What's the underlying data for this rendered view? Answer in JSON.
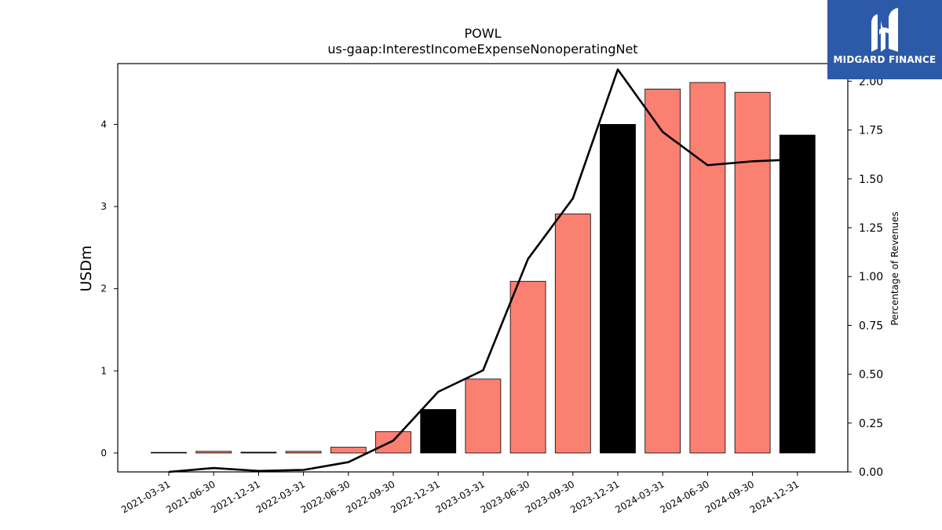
{
  "chart_data": {
    "type": "bar",
    "title": "POWL",
    "subtitle": "us-gaap:InterestIncomeExpenseNonoperatingNet",
    "ylabel": "USDm",
    "y2label": "Percentage of Revenues",
    "categories": [
      "2021-03-31",
      "2021-06-30",
      "2021-12-31",
      "2022-03-31",
      "2022-06-30",
      "2022-09-30",
      "2022-12-31",
      "2023-03-31",
      "2023-06-30",
      "2023-09-30",
      "2023-12-31",
      "2024-03-31",
      "2024-06-30",
      "2024-09-30",
      "2024-12-31"
    ],
    "series": [
      {
        "values": [
          0.0,
          0.02,
          0.01,
          0.02,
          0.07,
          0.26,
          0.53,
          0.9,
          2.09,
          2.91,
          4.0,
          4.43,
          4.51,
          4.39,
          3.87
        ],
        "colors": [
          "#fa8072",
          "#fa8072",
          "#000000",
          "#fa8072",
          "#fa8072",
          "#fa8072",
          "#000000",
          "#fa8072",
          "#fa8072",
          "#fa8072",
          "#000000",
          "#fa8072",
          "#fa8072",
          "#fa8072",
          "#000000"
        ]
      },
      {
        "axis": "right",
        "type": "line",
        "values": [
          0.0,
          0.02,
          0.005,
          0.01,
          0.05,
          0.16,
          0.41,
          0.52,
          1.09,
          1.4,
          2.06,
          1.74,
          1.57,
          1.59,
          1.6
        ]
      }
    ],
    "ylim": [
      -0.23,
      4.74
    ],
    "y2lim": [
      0.0,
      2.09
    ],
    "yticks": [
      "0",
      "1",
      "2",
      "3",
      "4"
    ],
    "y2ticks": [
      "0.00",
      "0.25",
      "0.50",
      "0.75",
      "1.00",
      "1.25",
      "1.50",
      "1.75",
      "2.00"
    ],
    "legend": "none",
    "grid": false
  },
  "logo": {
    "text": "MIDGARD FINANCE"
  }
}
